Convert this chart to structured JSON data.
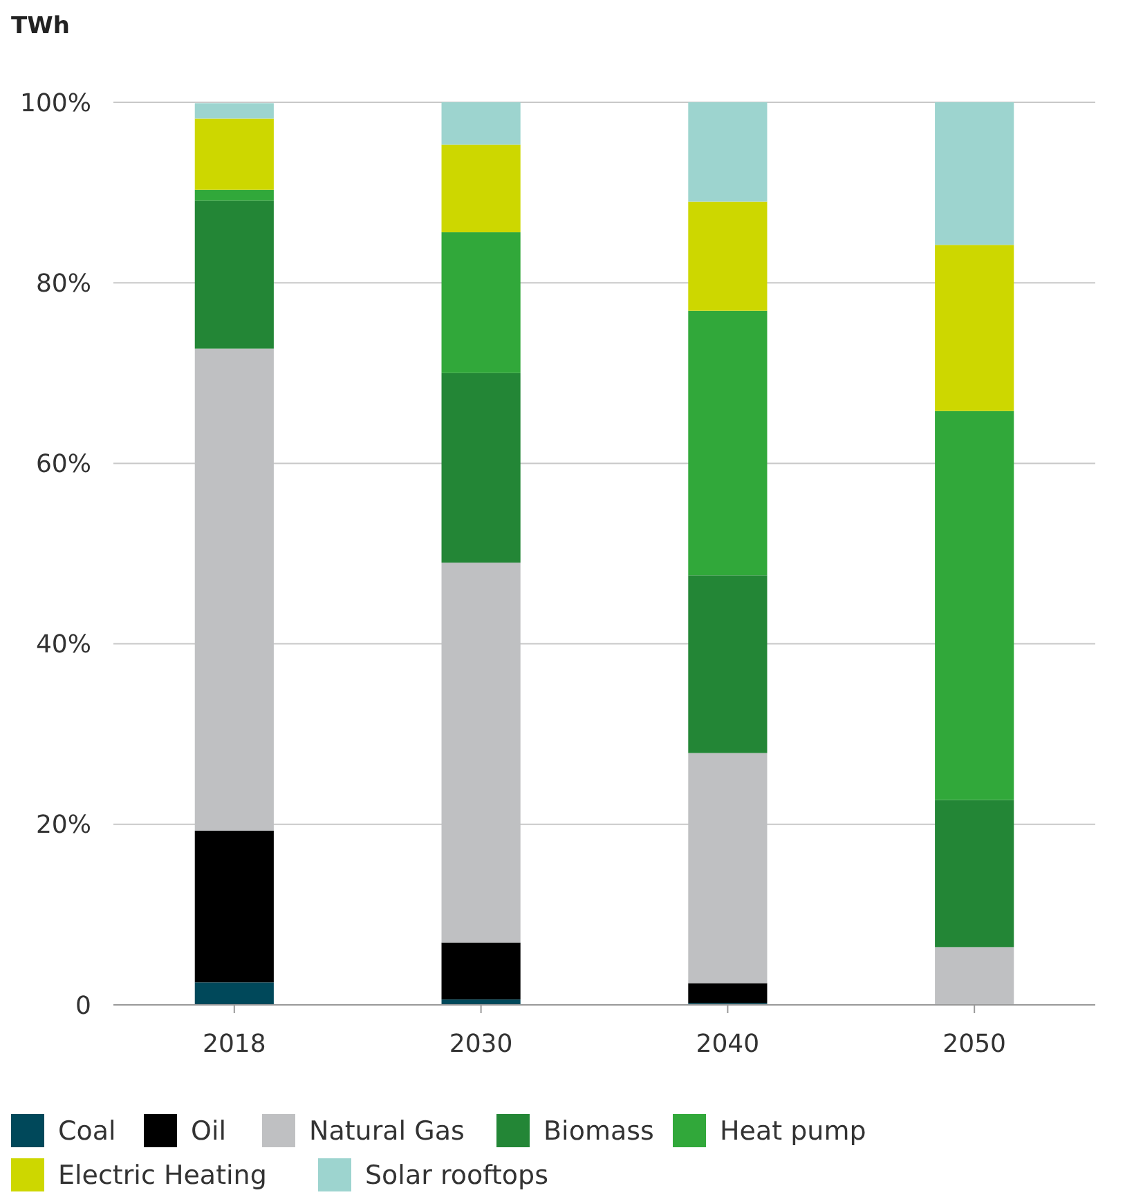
{
  "chart_data": {
    "type": "bar",
    "stacked": true,
    "ylabel": "TWh",
    "categories": [
      "2018",
      "2030",
      "2040",
      "2050"
    ],
    "series": [
      {
        "name": "Coal",
        "color": "#00485a",
        "values": [
          2.5,
          0.6,
          0.2,
          0
        ]
      },
      {
        "name": "Oil",
        "color": "#000000",
        "values": [
          16.8,
          6.3,
          2.2,
          0
        ]
      },
      {
        "name": "Natural Gas",
        "color": "#bfc0c2",
        "values": [
          53.4,
          42.1,
          25.5,
          6.4
        ]
      },
      {
        "name": "Biomass",
        "color": "#238636",
        "values": [
          16.4,
          21.0,
          19.7,
          16.3
        ]
      },
      {
        "name": "Heat pump",
        "color": "#31a83a",
        "values": [
          1.2,
          15.6,
          29.3,
          43.1
        ]
      },
      {
        "name": "Electric Heating",
        "color": "#cdd700",
        "values": [
          7.9,
          9.7,
          12.1,
          18.4
        ]
      },
      {
        "name": "Solar rooftops",
        "color": "#9dd4cf",
        "values": [
          1.7,
          4.7,
          11.0,
          15.8
        ]
      }
    ],
    "ylim": [
      0,
      100
    ],
    "yticks": [
      {
        "value": 0,
        "label": "0"
      },
      {
        "value": 20,
        "label": "20%"
      },
      {
        "value": 40,
        "label": "40%"
      },
      {
        "value": 60,
        "label": "60%"
      },
      {
        "value": 80,
        "label": "80%"
      },
      {
        "value": 100,
        "label": "100%"
      }
    ],
    "grid": "y",
    "legend": "bottom"
  }
}
